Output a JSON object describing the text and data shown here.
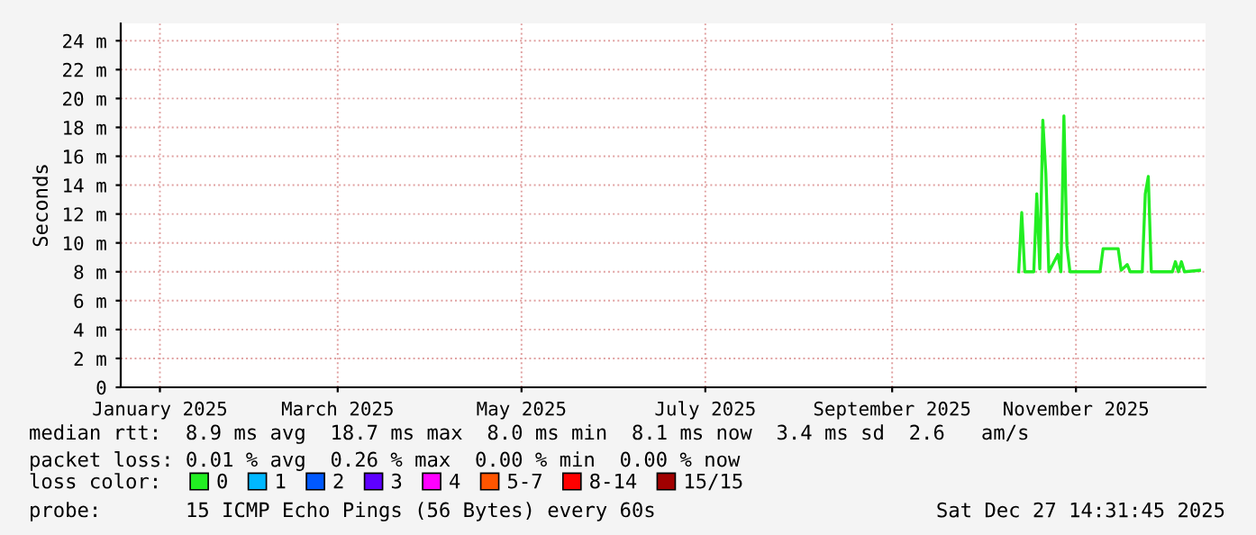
{
  "chart_data": {
    "type": "line",
    "ylabel": "Seconds",
    "legend_title": "loss color:",
    "legend": "bottom",
    "grid": true,
    "line_style": "solid",
    "marker": "none",
    "x": [
      "2025-10-13",
      "2025-10-14",
      "2025-10-15",
      "2025-10-18",
      "2025-10-19",
      "2025-10-20",
      "2025-10-21",
      "2025-10-22",
      "2025-10-23",
      "2025-10-26",
      "2025-10-27",
      "2025-10-28",
      "2025-10-29",
      "2025-10-30",
      "2025-11-09",
      "2025-11-10",
      "2025-11-15",
      "2025-11-16",
      "2025-11-18",
      "2025-11-19",
      "2025-11-23",
      "2025-11-24",
      "2025-11-25",
      "2025-11-26",
      "2025-12-03",
      "2025-12-04",
      "2025-12-05",
      "2025-12-06",
      "2025-12-07",
      "2025-12-12"
    ],
    "series": [
      {
        "name": "0",
        "color": "#22ee22",
        "values": [
          8.0,
          12.1,
          8.0,
          8.0,
          13.4,
          8.2,
          18.5,
          14.8,
          8.0,
          9.2,
          8.0,
          18.8,
          9.8,
          8.0,
          8.0,
          9.6,
          9.6,
          8.1,
          8.5,
          8.0,
          8.0,
          13.4,
          14.6,
          8.0,
          8.0,
          8.7,
          8.0,
          8.7,
          8.0,
          8.1
        ]
      },
      {
        "name": "1",
        "color": "#00b8ff",
        "values": [
          null,
          null,
          null,
          null,
          null,
          null,
          null,
          null,
          null,
          null,
          null,
          null,
          null,
          null,
          null,
          null,
          null,
          null,
          null,
          null,
          null,
          null,
          null,
          null,
          null,
          null,
          null,
          null,
          null,
          null
        ]
      },
      {
        "name": "2",
        "color": "#0059ff",
        "values": [
          null,
          null,
          null,
          null,
          null,
          null,
          null,
          null,
          null,
          null,
          null,
          null,
          null,
          null,
          null,
          null,
          null,
          null,
          null,
          null,
          null,
          null,
          null,
          null,
          null,
          null,
          null,
          null,
          null,
          null
        ]
      },
      {
        "name": "3",
        "color": "#5e00ff",
        "values": [
          null,
          null,
          null,
          null,
          null,
          null,
          null,
          null,
          null,
          null,
          null,
          null,
          null,
          null,
          null,
          null,
          null,
          null,
          null,
          null,
          null,
          null,
          null,
          null,
          null,
          null,
          null,
          null,
          null,
          null
        ]
      },
      {
        "name": "4",
        "color": "#ff00ff",
        "values": [
          null,
          null,
          null,
          null,
          null,
          null,
          null,
          null,
          null,
          null,
          null,
          null,
          null,
          null,
          null,
          null,
          null,
          null,
          null,
          null,
          null,
          null,
          null,
          null,
          null,
          null,
          null,
          null,
          null,
          null
        ]
      },
      {
        "name": "5-7",
        "color": "#ff5500",
        "values": [
          null,
          null,
          null,
          null,
          null,
          null,
          null,
          null,
          null,
          null,
          null,
          null,
          null,
          null,
          null,
          null,
          null,
          null,
          null,
          null,
          null,
          null,
          null,
          null,
          null,
          null,
          null,
          null,
          null,
          null
        ]
      },
      {
        "name": "8-14",
        "color": "#ff0000",
        "values": [
          null,
          null,
          null,
          null,
          null,
          null,
          null,
          null,
          null,
          null,
          null,
          null,
          null,
          null,
          null,
          null,
          null,
          null,
          null,
          null,
          null,
          null,
          null,
          null,
          null,
          null,
          null,
          null,
          null,
          null
        ]
      },
      {
        "name": "15/15",
        "color": "#a10000",
        "values": [
          null,
          null,
          null,
          null,
          null,
          null,
          null,
          null,
          null,
          null,
          null,
          null,
          null,
          null,
          null,
          null,
          null,
          null,
          null,
          null,
          null,
          null,
          null,
          null,
          null,
          null,
          null,
          null,
          null,
          null
        ]
      }
    ],
    "xlim": [
      "2024-12-19",
      "2025-12-14"
    ],
    "xticks": [
      {
        "value": "2025-01-01",
        "label": "January 2025"
      },
      {
        "value": "2025-03-01",
        "label": "March 2025"
      },
      {
        "value": "2025-05-01",
        "label": "May 2025"
      },
      {
        "value": "2025-07-01",
        "label": "July 2025"
      },
      {
        "value": "2025-09-01",
        "label": "September 2025"
      },
      {
        "value": "2025-11-01",
        "label": "November 2025"
      }
    ],
    "ylim": [
      0,
      25.2
    ],
    "yticks": [
      0,
      {
        "value": 2,
        "label": "2 m"
      },
      {
        "value": 4,
        "label": "4 m"
      },
      {
        "value": 6,
        "label": "6 m"
      },
      {
        "value": 8,
        "label": "8 m"
      },
      {
        "value": 10,
        "label": "10 m"
      },
      {
        "value": 12,
        "label": "12 m"
      },
      {
        "value": 14,
        "label": "14 m"
      },
      {
        "value": 16,
        "label": "16 m"
      },
      {
        "value": 18,
        "label": "18 m"
      },
      {
        "value": 20,
        "label": "20 m"
      },
      {
        "value": 22,
        "label": "22 m"
      },
      {
        "value": 24,
        "label": "24 m"
      }
    ],
    "annotations": [
      "median rtt:  8.9 ms avg  18.7 ms max  8.0 ms min  8.1 ms now  3.4 ms sd  2.6   am/s",
      "packet loss: 0.01 % avg  0.26 % max  0.00 % min  0.00 % now",
      "probe:       15 ICMP Echo Pings (56 Bytes) every 60s",
      "Sat Dec 27 14:31:45 2025"
    ]
  }
}
